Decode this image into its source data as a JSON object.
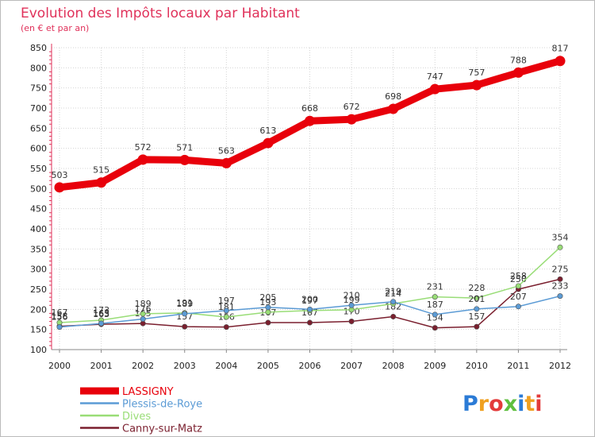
{
  "chart_data": {
    "type": "line",
    "title": "Evolution des Impôts locaux par Habitant",
    "subtitle": "(en € et par an)",
    "x": [
      "2000",
      "2001",
      "2002",
      "2003",
      "2004",
      "2005",
      "2006",
      "2007",
      "2008",
      "2009",
      "2010",
      "2011",
      "2012"
    ],
    "ylim": [
      100,
      850
    ],
    "yticks": [
      100,
      150,
      200,
      250,
      300,
      350,
      400,
      450,
      500,
      550,
      600,
      650,
      700,
      750,
      800,
      850
    ],
    "grid": true,
    "legend_position": "bottom-left",
    "series": [
      {
        "name": "LASSIGNY",
        "color": "#e8000b",
        "values": [
          503,
          515,
          572,
          571,
          563,
          613,
          668,
          672,
          698,
          747,
          757,
          788,
          817
        ]
      },
      {
        "name": "Plessis-de-Roye",
        "color": "#5b9bd5",
        "values": [
          156,
          165,
          176,
          189,
          197,
          205,
          200,
          210,
          219,
          187,
          201,
          207,
          233
        ]
      },
      {
        "name": "Dives",
        "color": "#99dd77",
        "values": [
          167,
          173,
          189,
          191,
          181,
          193,
          197,
          199,
          214,
          231,
          228,
          258,
          354
        ]
      },
      {
        "name": "Canny-sur-Matz",
        "color": "#7a1f2e",
        "values": [
          158,
          163,
          165,
          157,
          156,
          167,
          167,
          170,
          182,
          154,
          157,
          250,
          275
        ]
      }
    ]
  },
  "brand": {
    "logo_text": "Proxiti"
  }
}
